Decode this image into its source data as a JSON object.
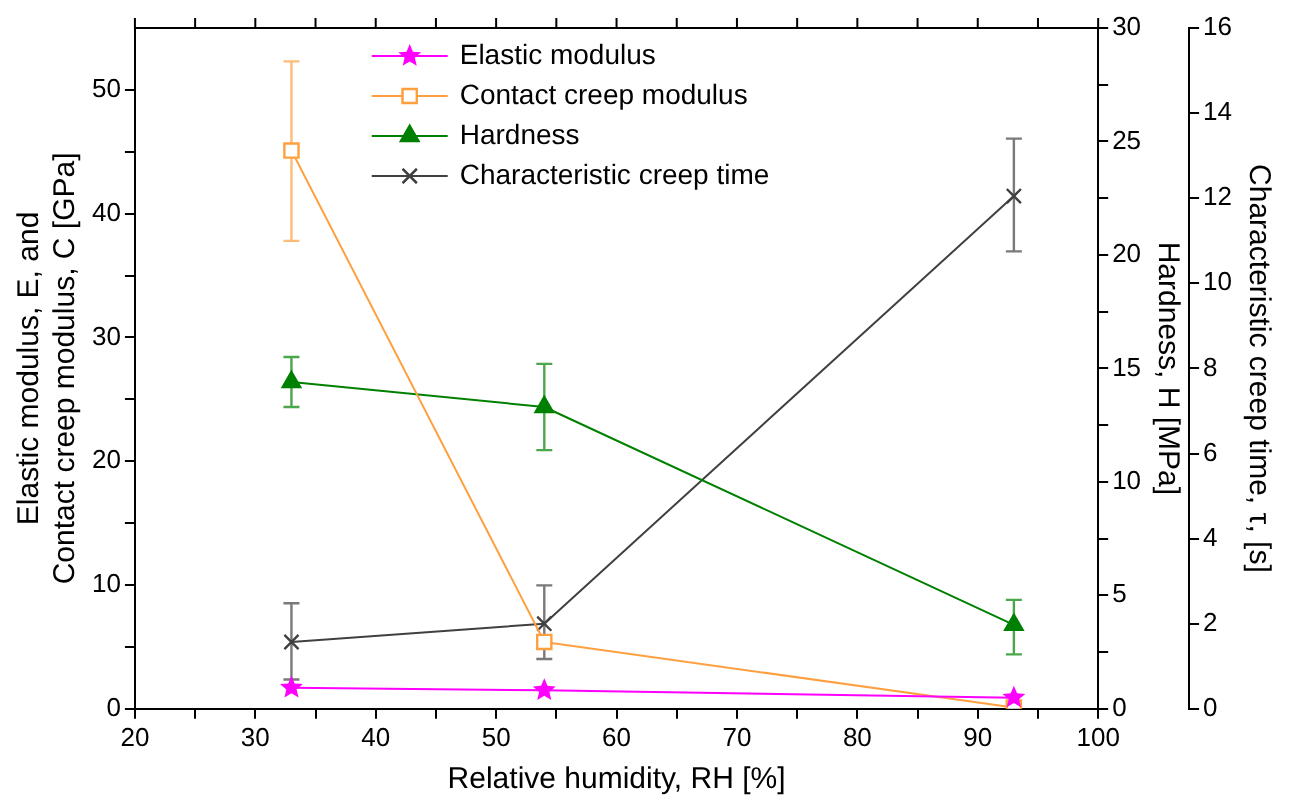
{
  "chart_data": {
    "type": "line",
    "xlabel": "Relative humidity, RH [%]",
    "ylabel": "Elastic modulus, E, and\nContact creep modulus, C [GPa]",
    "y2label": "Hardness, H [MPa]",
    "y3label": "Characteristic creep time, τ, [s]",
    "x": [
      33,
      54,
      93
    ],
    "xlim": [
      20,
      100
    ],
    "xticks": [
      20,
      {
        "value": 25,
        "label": null
      },
      30,
      {
        "value": 35,
        "label": null
      },
      40,
      {
        "value": 45,
        "label": null
      },
      50,
      {
        "value": 55,
        "label": null
      },
      60,
      {
        "value": 65,
        "label": null
      },
      70,
      {
        "value": 75,
        "label": null
      },
      80,
      {
        "value": 85,
        "label": null
      },
      90,
      {
        "value": 95,
        "label": null
      },
      100
    ],
    "ylim": [
      0,
      55
    ],
    "yticks": [
      0,
      {
        "value": 5,
        "label": null
      },
      10,
      {
        "value": 15,
        "label": null
      },
      20,
      {
        "value": 25,
        "label": null
      },
      30,
      {
        "value": 35,
        "label": null
      },
      40,
      {
        "value": 45,
        "label": null
      },
      50
    ],
    "y2lim": [
      0,
      30
    ],
    "y2ticks": [
      0,
      {
        "value": 2.5,
        "label": null
      },
      5,
      {
        "value": 7.5,
        "label": null
      },
      10,
      {
        "value": 12.5,
        "label": null
      },
      15,
      {
        "value": 17.5,
        "label": null
      },
      20,
      {
        "value": 22.5,
        "label": null
      },
      25,
      {
        "value": 27.5,
        "label": null
      },
      30
    ],
    "y3lim": [
      0,
      16
    ],
    "y3ticks": [
      0,
      2,
      4,
      6,
      8,
      10,
      12,
      14,
      16
    ],
    "legend": "top",
    "grid": false,
    "line_style": "solid",
    "series": [
      {
        "name": "Elastic modulus",
        "color": "#ff00ff",
        "marker": "star",
        "values": [
          1.7,
          1.5,
          0.9
        ]
      },
      {
        "name": "Contact creep modulus",
        "color": "#ffa040",
        "marker": "square",
        "values": [
          45.1,
          5.4,
          0.1
        ],
        "errors": [
          [
            37.8,
            52.3
          ],
          null,
          null
        ]
      },
      {
        "name": "Hardness",
        "color": "#008000",
        "marker": "triangle",
        "axis": "y2",
        "values": [
          14.4,
          13.3,
          3.7
        ],
        "errors": [
          [
            13.3,
            15.5
          ],
          [
            11.4,
            15.2
          ],
          [
            2.4,
            4.8
          ]
        ]
      },
      {
        "name": "Characteristic creep time",
        "color": "#404040",
        "marker": "cross",
        "axis": "y3",
        "values": [
          1.57,
          2.0,
          12.05
        ],
        "errors": [
          [
            0.69,
            2.48
          ],
          [
            1.17,
            2.9
          ],
          [
            10.75,
            13.4
          ]
        ]
      }
    ]
  }
}
